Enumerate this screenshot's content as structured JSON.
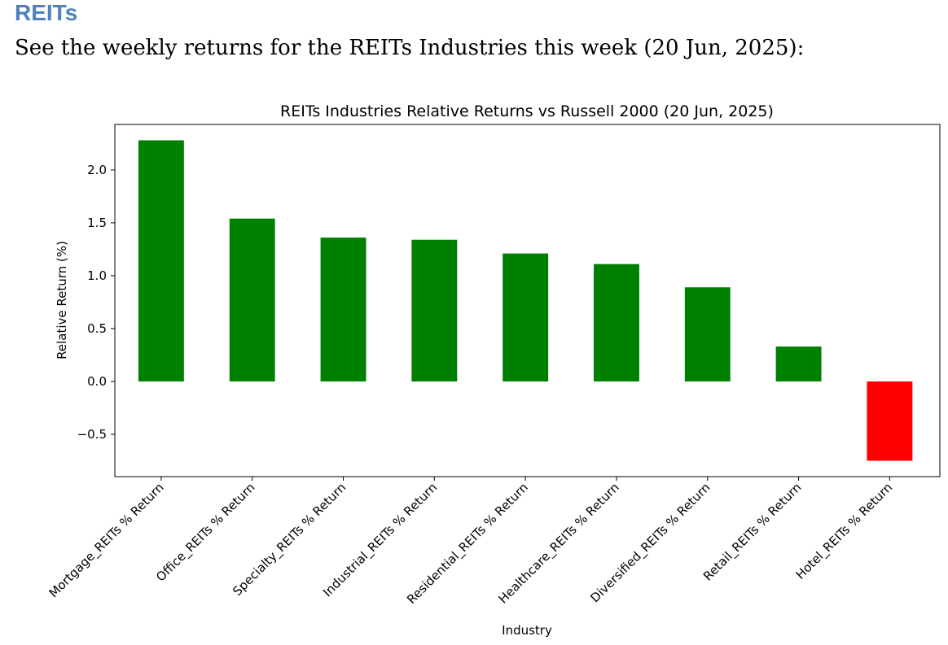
{
  "page": {
    "heading": "REITs",
    "intro": "See the weekly returns for the REITs Industries this week (20 Jun, 2025):"
  },
  "colors": {
    "heading": "#4f81bd",
    "positive": "#008000",
    "negative": "#ff0000"
  },
  "chart_data": {
    "type": "bar",
    "title": "REITs Industries Relative Returns vs Russell 2000 (20 Jun, 2025)",
    "xlabel": "Industry",
    "ylabel": "Relative Return (%)",
    "categories": [
      "Mortgage_REITs % Return",
      "Office_REITs % Return",
      "Specialty_REITs % Return",
      "Industrial_REITs % Return",
      "Residential_REITs % Return",
      "Healthcare_REITs % Return",
      "Diversified_REITs % Return",
      "Retail_REITs % Return",
      "Hotel_REITs % Return"
    ],
    "values": [
      2.28,
      1.54,
      1.36,
      1.34,
      1.21,
      1.11,
      0.89,
      0.33,
      -0.75
    ],
    "ylim": [
      -0.9,
      2.43
    ],
    "yticks": [
      -0.5,
      0.0,
      0.5,
      1.0,
      1.5,
      2.0
    ],
    "ytick_labels": [
      "−0.5",
      "0.0",
      "0.5",
      "1.0",
      "1.5",
      "2.0"
    ],
    "grid": false,
    "legend": "none"
  }
}
